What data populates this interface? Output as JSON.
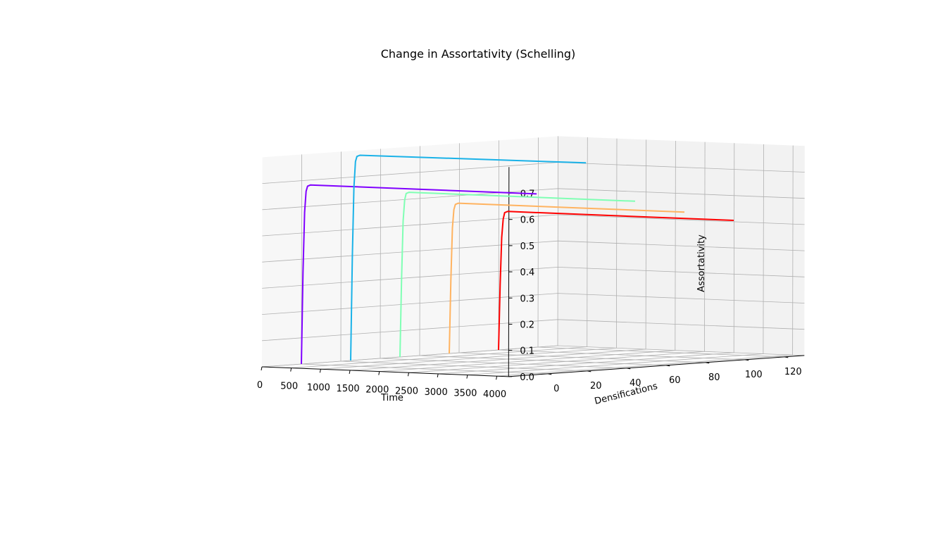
{
  "chart_data": {
    "type": "line",
    "projection": "3d",
    "title": "Change in Assortativity (Schelling)",
    "xlabel": "Time",
    "ylabel": "Densifications",
    "zlabel": "Assortativity",
    "xticks": [
      "0",
      "500",
      "1000",
      "1500",
      "2000",
      "2500",
      "3000",
      "3500",
      "4000"
    ],
    "yticks": [
      "0",
      "20",
      "40",
      "60",
      "80",
      "100",
      "120"
    ],
    "zticks": [
      "0.0",
      "0.1",
      "0.2",
      "0.3",
      "0.4",
      "0.5",
      "0.6",
      "0.7"
    ],
    "xlim": [
      0,
      4200
    ],
    "ylim": [
      -20,
      130
    ],
    "zlim": [
      0,
      0.8
    ],
    "grid": true,
    "series": [
      {
        "color": "#8000ff",
        "densification": 0,
        "x": [
          0,
          25,
          50,
          75,
          100,
          150,
          4000
        ],
        "z": [
          0.0,
          0.35,
          0.58,
          0.66,
          0.68,
          0.685,
          0.685
        ]
      },
      {
        "color": "#1ab2e8",
        "densification": 25,
        "x": [
          0,
          25,
          50,
          75,
          100,
          150,
          4000
        ],
        "z": [
          0.0,
          0.4,
          0.66,
          0.76,
          0.78,
          0.785,
          0.79
        ]
      },
      {
        "color": "#80ffb4",
        "densification": 50,
        "x": [
          0,
          25,
          50,
          75,
          100,
          150,
          4000
        ],
        "z": [
          0.0,
          0.3,
          0.52,
          0.6,
          0.625,
          0.63,
          0.63
        ]
      },
      {
        "color": "#ffb360",
        "densification": 75,
        "x": [
          0,
          25,
          50,
          75,
          100,
          150,
          4000
        ],
        "z": [
          0.0,
          0.28,
          0.48,
          0.55,
          0.57,
          0.575,
          0.575
        ]
      },
      {
        "color": "#ff0000",
        "densification": 100,
        "x": [
          0,
          25,
          50,
          75,
          100,
          150,
          4000
        ],
        "z": [
          0.0,
          0.25,
          0.43,
          0.5,
          0.525,
          0.53,
          0.53
        ]
      }
    ]
  }
}
